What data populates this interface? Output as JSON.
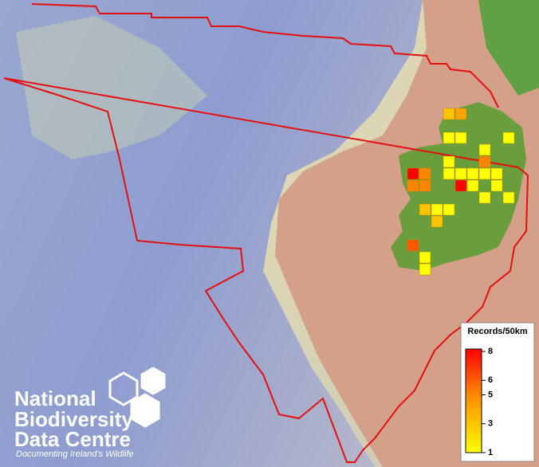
{
  "legend": {
    "title": "Records/50km",
    "ticks": [
      8,
      6,
      5,
      3,
      1
    ],
    "min": 1,
    "max": 8
  },
  "logo": {
    "lines": [
      "National",
      "Biodiversity",
      "Data Centre"
    ],
    "tagline": "Documenting Ireland's Wildlife"
  },
  "cells": [
    3,
    4,
    1,
    1,
    1,
    1,
    5,
    1,
    8,
    5,
    1,
    1,
    1,
    1,
    1,
    5,
    5,
    8,
    1,
    1,
    1,
    1,
    3,
    1,
    1,
    3,
    6,
    1,
    1
  ]
}
